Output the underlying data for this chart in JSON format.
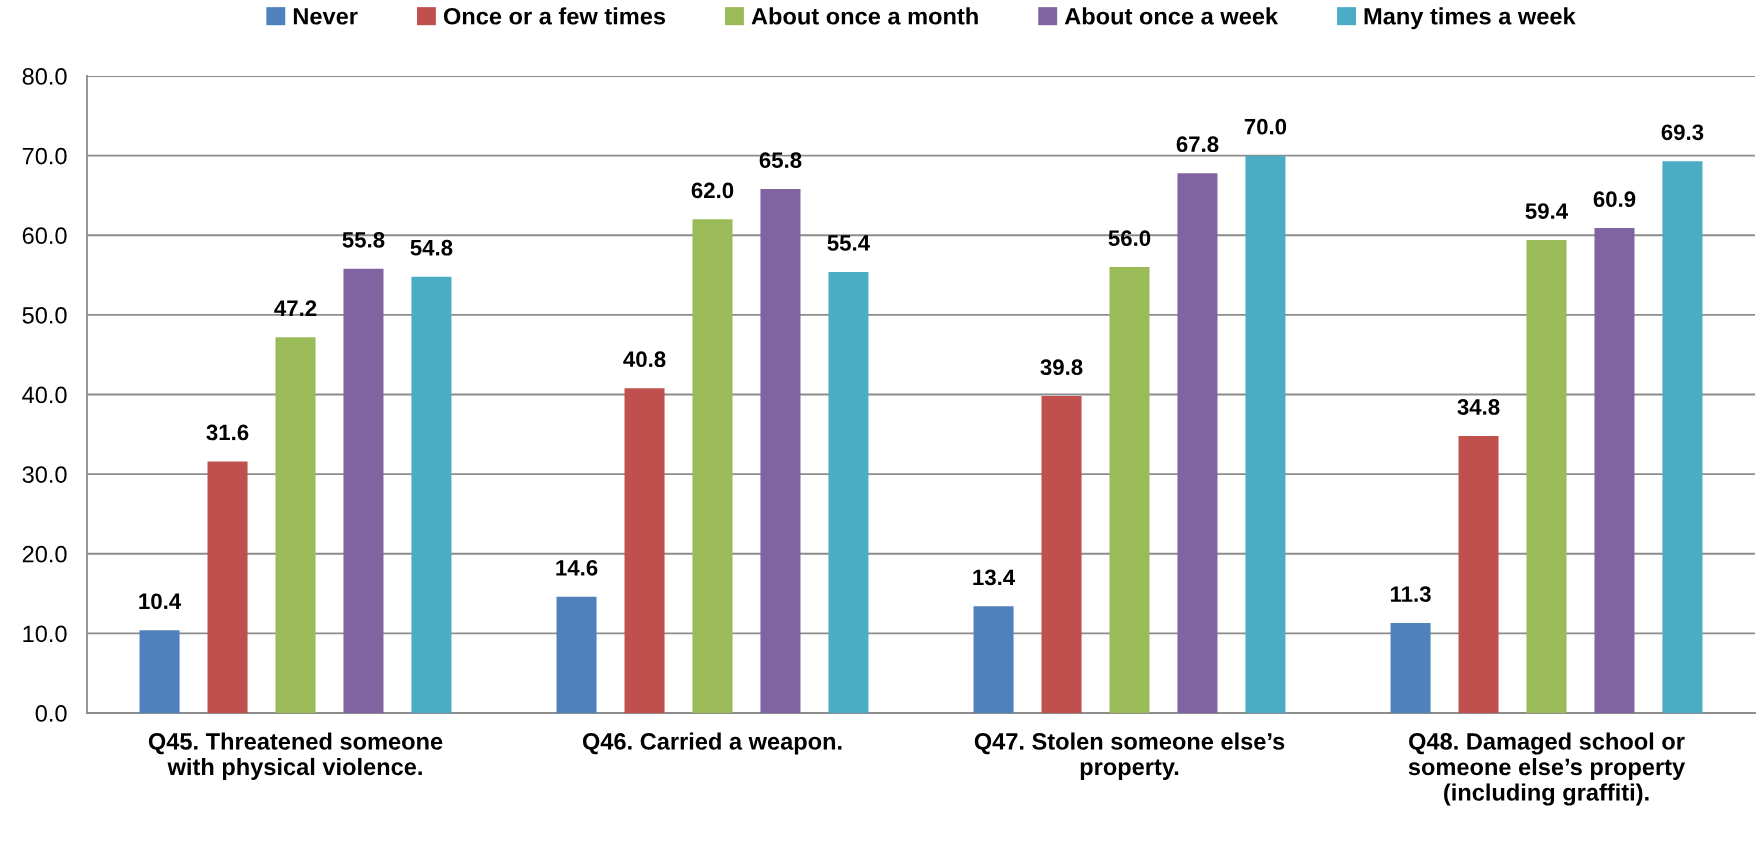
{
  "chart_data": {
    "type": "bar",
    "categories": [
      "Q45. Threatened someone\nwith physical violence.",
      "Q46. Carried a weapon.",
      "Q47. Stolen someone else’s\nproperty.",
      "Q48. Damaged school or\nsomeone else’s property\n(including graffiti)."
    ],
    "series": [
      {
        "name": "Never",
        "color": "#4f81bd",
        "values": [
          10.4,
          14.6,
          13.4,
          11.3
        ],
        "value_labels": [
          "10.4",
          "14.6",
          "13.4",
          "11.3"
        ]
      },
      {
        "name": "Once or a few times",
        "color": "#c0504d",
        "values": [
          31.6,
          40.8,
          39.8,
          34.8
        ],
        "value_labels": [
          "31.6",
          "40.8",
          "39.8",
          "34.8"
        ]
      },
      {
        "name": "About once a month",
        "color": "#9bbb59",
        "values": [
          47.2,
          62.0,
          56.0,
          59.4
        ],
        "value_labels": [
          "47.2",
          "62.0",
          "56.0",
          "59.4"
        ]
      },
      {
        "name": "About once a week",
        "color": "#8064a2",
        "values": [
          55.8,
          65.8,
          67.8,
          60.9
        ],
        "value_labels": [
          "55.8",
          "65.8",
          "67.8",
          "60.9"
        ]
      },
      {
        "name": "Many times a week",
        "color": "#4bacc6",
        "values": [
          54.8,
          55.4,
          70.0,
          69.3
        ],
        "value_labels": [
          "54.8",
          "55.4",
          "70.0",
          "69.3"
        ]
      }
    ],
    "ylim": [
      0,
      80
    ],
    "yticks": [
      {
        "value": 0,
        "label": "0.0"
      },
      {
        "value": 10,
        "label": "10.0"
      },
      {
        "value": 20,
        "label": "20.0"
      },
      {
        "value": 30,
        "label": "30.0"
      },
      {
        "value": 40,
        "label": "40.0"
      },
      {
        "value": 50,
        "label": "50.0"
      },
      {
        "value": 60,
        "label": "60.0"
      },
      {
        "value": 70,
        "label": "70.0"
      },
      {
        "value": 80,
        "label": "80.0"
      }
    ],
    "grid": "y",
    "legend": "top"
  }
}
